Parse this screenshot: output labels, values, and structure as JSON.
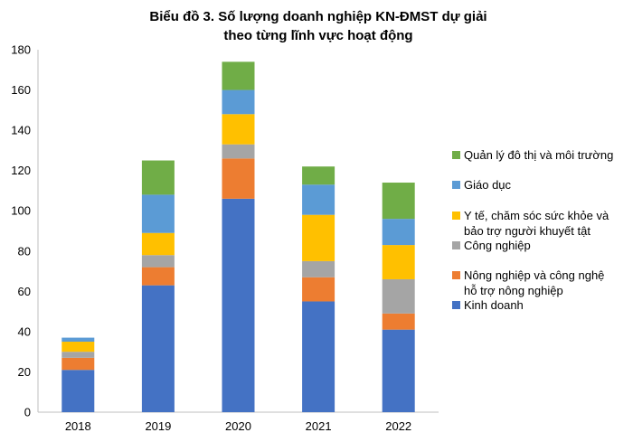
{
  "chart_data": {
    "type": "bar",
    "stacked": true,
    "title_lines": [
      "Biểu đồ 3. Số lượng doanh nghiệp KN-ĐMST dự giải",
      "theo từng lĩnh vực hoạt động"
    ],
    "xlabel": "",
    "ylabel": "",
    "categories": [
      "2018",
      "2019",
      "2020",
      "2021",
      "2022"
    ],
    "ylim": [
      0,
      180
    ],
    "yticks": [
      0,
      20,
      40,
      60,
      80,
      100,
      120,
      140,
      160,
      180
    ],
    "grid": false,
    "legend_position": "right",
    "series": [
      {
        "name": "Kinh doanh",
        "name_lines": [
          "Kinh doanh"
        ],
        "color": "#4472C4",
        "values": [
          21,
          63,
          106,
          55,
          41
        ]
      },
      {
        "name": "Nông nghiệp và công nghệ hỗ trợ nông nghiệp",
        "name_lines": [
          "Nông nghiệp và công nghệ",
          "hỗ trợ nông nghiệp"
        ],
        "color": "#ED7D31",
        "values": [
          6,
          9,
          20,
          12,
          8
        ]
      },
      {
        "name": "Công nghiệp",
        "name_lines": [
          "Công nghiệp"
        ],
        "color": "#A5A5A5",
        "values": [
          3,
          6,
          7,
          8,
          17
        ]
      },
      {
        "name": "Y tế, chăm sóc sức khỏe và bảo trợ người khuyết tật",
        "name_lines": [
          "Y tế, chăm sóc sức khỏe và",
          "bảo trợ người khuyết tật"
        ],
        "color": "#FFC000",
        "values": [
          5,
          11,
          15,
          23,
          17
        ]
      },
      {
        "name": "Giáo dục",
        "name_lines": [
          "Giáo dục"
        ],
        "color": "#5B9BD5",
        "values": [
          2,
          19,
          12,
          15,
          13
        ]
      },
      {
        "name": "Quản lý đô  thị và môi trường",
        "name_lines": [
          "Quản lý đô  thị và môi trường"
        ],
        "color": "#70AD47",
        "values": [
          0,
          17,
          14,
          9,
          18
        ]
      }
    ]
  }
}
